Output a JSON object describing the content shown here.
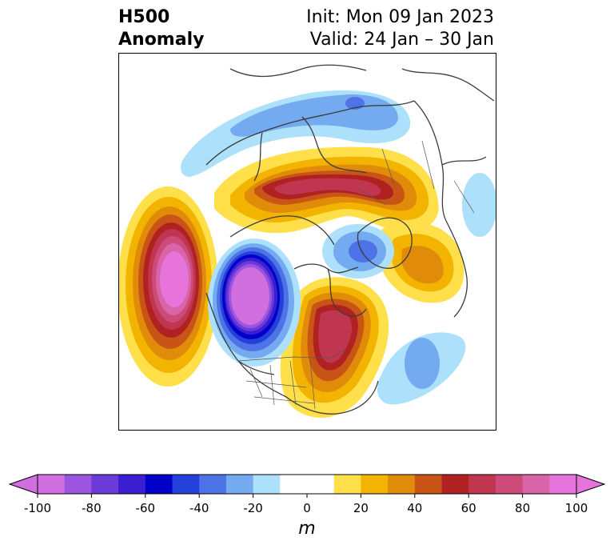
{
  "header": {
    "title_line1": "H500",
    "title_line2": "Anomaly",
    "init": "Init: Mon 09 Jan 2023",
    "valid": "Valid: 24 Jan – 30 Jan"
  },
  "colorbar": {
    "ticks": [
      "-100",
      "-80",
      "-60",
      "-40",
      "-20",
      "0",
      "20",
      "40",
      "60",
      "80",
      "100"
    ],
    "unit": "m",
    "levels": [
      -100,
      -90,
      -80,
      -70,
      -60,
      -50,
      -40,
      -30,
      -20,
      -10,
      10,
      20,
      30,
      40,
      50,
      60,
      70,
      80,
      90,
      100
    ],
    "colors": [
      "#d16fe0",
      "#9c55e0",
      "#6c3ad8",
      "#3a1ed0",
      "#0000c8",
      "#2340d8",
      "#4d73e6",
      "#74aaf0",
      "#ade0fb",
      "#ffffff",
      "#ffe04a",
      "#f2b400",
      "#e08c0a",
      "#c85516",
      "#b02222",
      "#c03550",
      "#cc4b78",
      "#d964a8",
      "#e674da"
    ],
    "under_color": "#d16fe0",
    "over_color": "#e674da"
  },
  "map": {
    "projection": "north-polar stereographic",
    "features": [
      {
        "name": "positive-anomaly-pacific",
        "peak": 100
      },
      {
        "name": "negative-anomaly-western-us-canada",
        "peak": -100
      },
      {
        "name": "positive-anomaly-eastern-north-america",
        "peak": 80
      },
      {
        "name": "positive-anomaly-arctic-ridge",
        "peak": 70
      },
      {
        "name": "negative-anomaly-greenland",
        "peak": -40
      },
      {
        "name": "negative-anomaly-siberia",
        "peak": -40
      },
      {
        "name": "positive-anomaly-greenland-southeast",
        "peak": 40
      },
      {
        "name": "negative-anomaly-atlantic",
        "peak": -30
      }
    ]
  }
}
